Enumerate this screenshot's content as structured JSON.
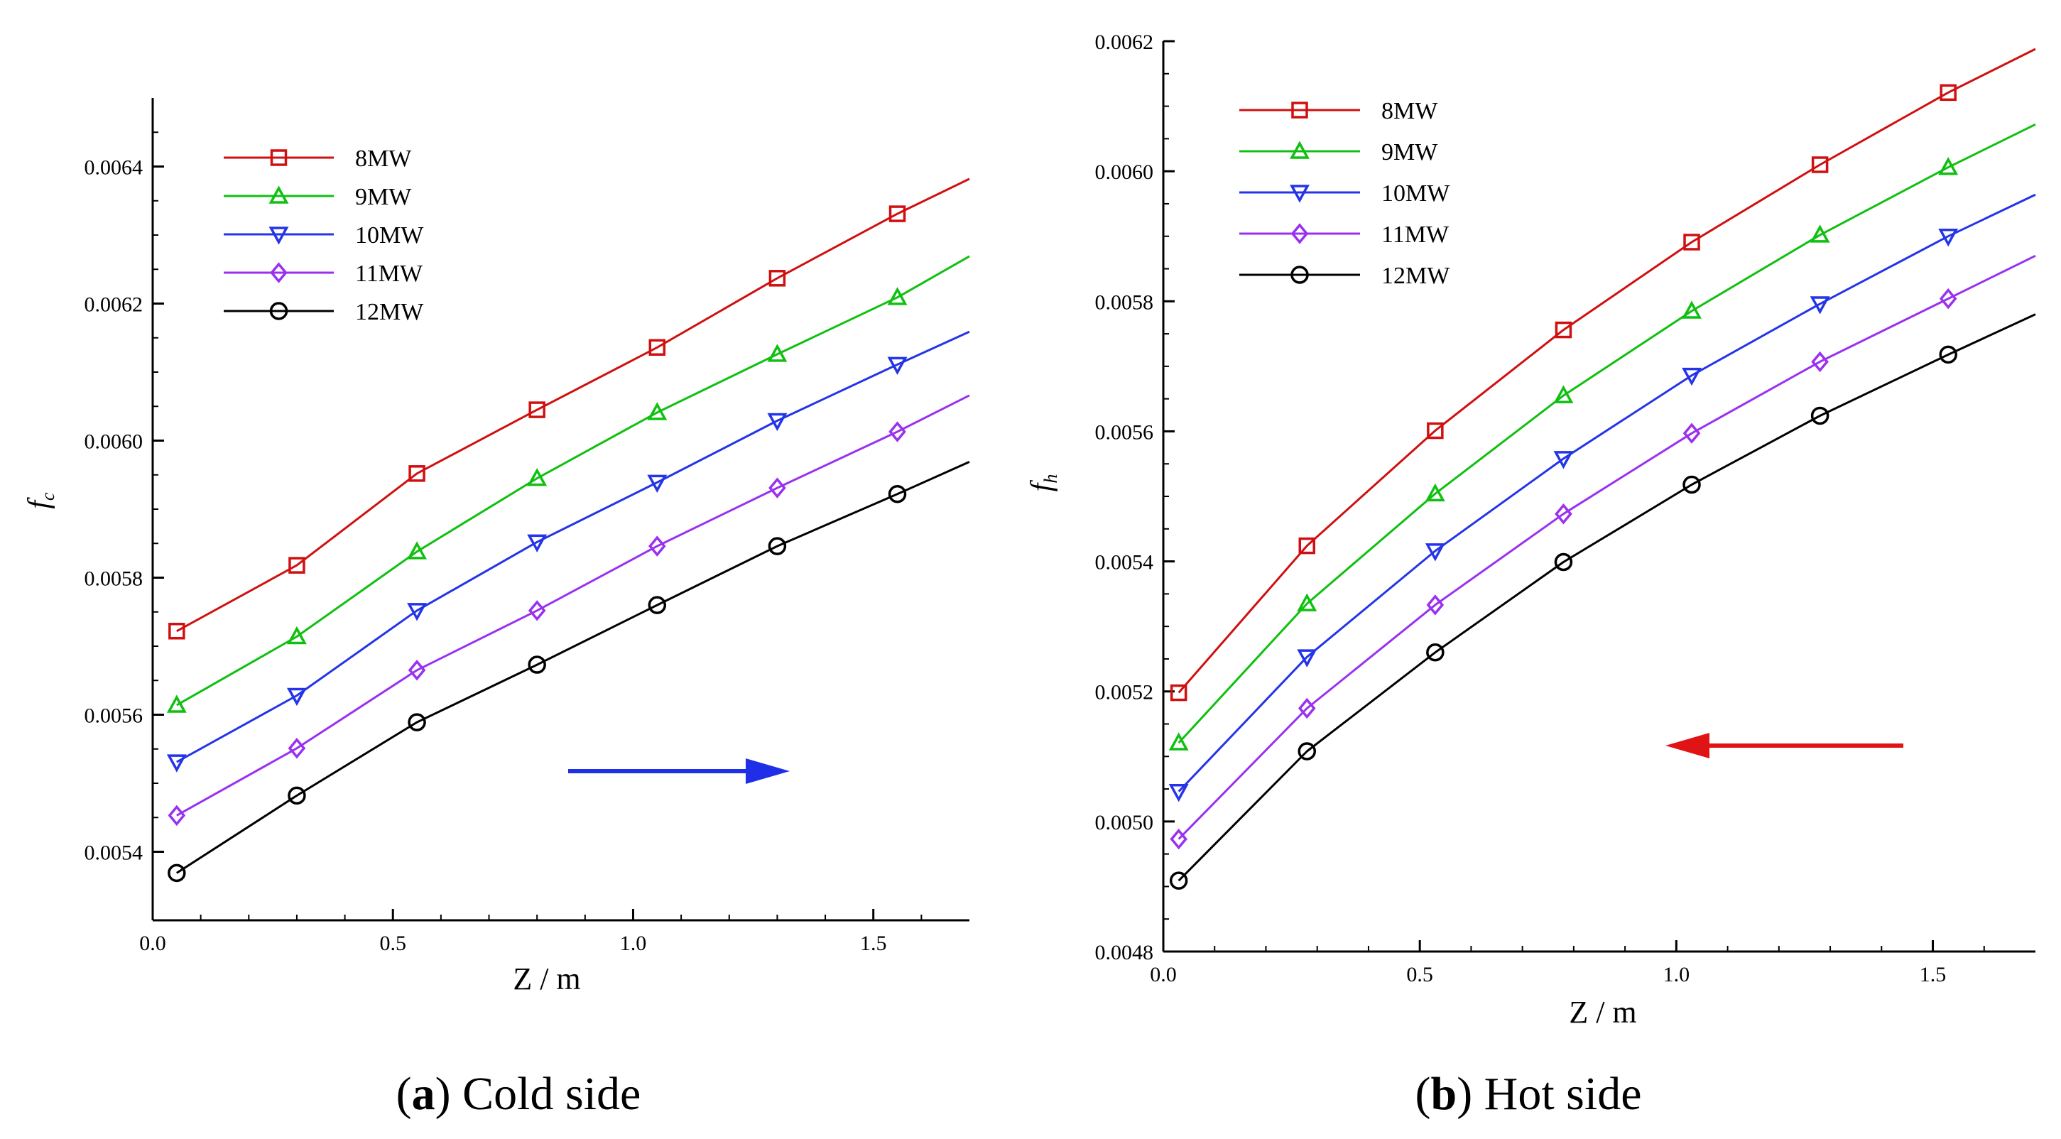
{
  "chart_data": [
    {
      "type": "line",
      "caption_letter": "a",
      "caption_text": "Cold side",
      "xlabel": "Z / m",
      "ylabel_symbol": "f",
      "ylabel_sub": "c",
      "xlim": [
        0.0,
        1.7
      ],
      "ylim": [
        0.0053,
        0.0065
      ],
      "xticks": [
        "0.0",
        "0.5",
        "1.0",
        "1.5"
      ],
      "yticks": [
        "0.0054",
        "0.0056",
        "0.0058",
        "0.0060",
        "0.0062",
        "0.0064"
      ],
      "legend_position": "top-left",
      "arrow_direction": "right",
      "arrow_color": "#1f2fe8",
      "x": [
        0.05,
        0.3,
        0.55,
        0.8,
        1.05,
        1.3,
        1.55,
        1.7
      ],
      "series": [
        {
          "name": "8MW",
          "color": "#d01010",
          "marker": "square",
          "values": [
            0.005722,
            0.005818,
            0.005952,
            0.006045,
            0.006136,
            0.006237,
            0.006331,
            0.006382
          ]
        },
        {
          "name": "9MW",
          "color": "#10c010",
          "marker": "triangle-up",
          "values": [
            0.005614,
            0.005714,
            0.005838,
            0.005945,
            0.006041,
            0.006126,
            0.006209,
            0.006269
          ]
        },
        {
          "name": "10MW",
          "color": "#2434e8",
          "marker": "triangle-down",
          "values": [
            0.005531,
            0.005628,
            0.005752,
            0.005852,
            0.005939,
            0.006029,
            0.006111,
            0.006159
          ]
        },
        {
          "name": "11MW",
          "color": "#9a30f0",
          "marker": "diamond",
          "values": [
            0.005453,
            0.005551,
            0.005665,
            0.005752,
            0.005846,
            0.005931,
            0.006013,
            0.006066
          ]
        },
        {
          "name": "12MW",
          "color": "#000000",
          "marker": "circle",
          "values": [
            0.005369,
            0.005482,
            0.005589,
            0.005673,
            0.00576,
            0.005846,
            0.005922,
            0.005969
          ]
        }
      ]
    },
    {
      "type": "line",
      "caption_letter": "b",
      "caption_text": "Hot side",
      "xlabel": "Z / m",
      "ylabel_symbol": "f",
      "ylabel_sub": "h",
      "xlim": [
        0.0,
        1.7
      ],
      "ylim": [
        0.0048,
        0.0062
      ],
      "xticks": [
        "0.0",
        "0.5",
        "1.0",
        "1.5"
      ],
      "yticks": [
        "0.0048",
        "0.0050",
        "0.0052",
        "0.0054",
        "0.0056",
        "0.0058",
        "0.0060",
        "0.0062"
      ],
      "legend_position": "top-left",
      "arrow_direction": "left",
      "arrow_color": "#e01414",
      "x": [
        0.03,
        0.28,
        0.53,
        0.78,
        1.03,
        1.28,
        1.53,
        1.7
      ],
      "series": [
        {
          "name": "8MW",
          "color": "#d01010",
          "marker": "square",
          "values": [
            0.005198,
            0.005424,
            0.005601,
            0.005756,
            0.005891,
            0.00601,
            0.006121,
            0.006188
          ]
        },
        {
          "name": "9MW",
          "color": "#10c010",
          "marker": "triangle-up",
          "values": [
            0.005121,
            0.005335,
            0.005504,
            0.005655,
            0.005785,
            0.005902,
            0.006006,
            0.006072
          ]
        },
        {
          "name": "10MW",
          "color": "#2434e8",
          "marker": "triangle-down",
          "values": [
            0.005046,
            0.005253,
            0.005416,
            0.005558,
            0.005686,
            0.005796,
            0.0059,
            0.005964
          ]
        },
        {
          "name": "11MW",
          "color": "#9a30f0",
          "marker": "diamond",
          "values": [
            0.004973,
            0.005174,
            0.005333,
            0.005473,
            0.005597,
            0.005707,
            0.005804,
            0.00587
          ]
        },
        {
          "name": "12MW",
          "color": "#000000",
          "marker": "circle",
          "values": [
            0.004909,
            0.005108,
            0.00526,
            0.005399,
            0.005518,
            0.005624,
            0.005718,
            0.00578
          ]
        }
      ]
    }
  ]
}
